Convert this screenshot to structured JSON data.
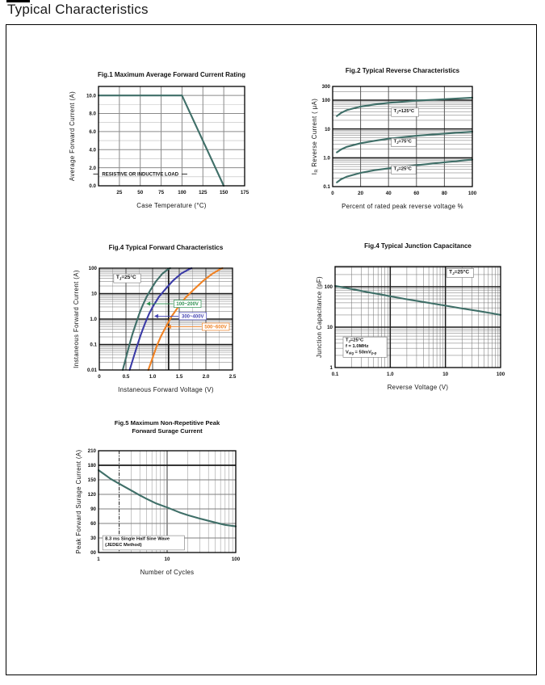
{
  "page": {
    "title": "Typical Characteristics"
  },
  "chart_data": [
    {
      "id": "fig1",
      "type": "line",
      "title": "Fig.1  Maximum Average Forward Current Rating",
      "xlabel": "Case Temperature (°C)",
      "ylabel": "Average Forward Current  (A)",
      "xscale": "linear",
      "xlim": [
        0,
        175
      ],
      "xtick_vals": [
        25,
        50,
        75,
        100,
        125,
        150,
        175
      ],
      "xtick_labels": [
        "25",
        "50",
        "75",
        "100",
        "125",
        "150",
        "175"
      ],
      "yscale": "linear",
      "ylim": [
        0,
        11
      ],
      "ytick_vals": [
        0,
        2,
        4,
        6,
        8,
        10
      ],
      "ytick_labels": [
        "0.0",
        "2.0",
        "4.0",
        "6.0",
        "8.0",
        "10.0"
      ],
      "yminor_step": 1,
      "grid": "on",
      "series": [
        {
          "name": "max-average-forward-current",
          "color": "#3F6F68",
          "points": [
            [
              0,
              10
            ],
            [
              100,
              10
            ],
            [
              150,
              0
            ]
          ]
        }
      ],
      "annotations": [
        {
          "kind": "dash-text",
          "text": "RESISTIVE OR INDUCTIVE LOAD",
          "x": 50,
          "y": 1.3
        }
      ]
    },
    {
      "id": "fig2",
      "type": "line",
      "title": "Fig.2  Typical Reverse Characteristics",
      "xlabel": "Percent of  rated peak reverse voltage  %",
      "ylabel": "I_{R}  Reverse Current ( μA)",
      "xscale": "linear",
      "xlim": [
        0,
        100
      ],
      "xtick_vals": [
        0,
        20,
        40,
        60,
        80,
        100
      ],
      "xtick_labels": [
        "0",
        "20",
        "40",
        "60",
        "80",
        "100"
      ],
      "yscale": "log",
      "ylim": [
        0.1,
        300
      ],
      "ytick_vals": [
        0.1,
        1,
        10,
        100,
        300
      ],
      "ytick_labels": [
        "0.1",
        "1.0",
        "10",
        "100",
        "300"
      ],
      "grid": "on",
      "series": [
        {
          "name": "reverse-current-tj-125C",
          "color": "#3F6F68",
          "points": [
            [
              3,
              28
            ],
            [
              6,
              36
            ],
            [
              10,
              45
            ],
            [
              20,
              60
            ],
            [
              30,
              71
            ],
            [
              40,
              81
            ],
            [
              60,
              96
            ],
            [
              80,
              108
            ],
            [
              100,
              122
            ]
          ]
        },
        {
          "name": "reverse-current-tj-75C",
          "color": "#3F6F68",
          "points": [
            [
              3,
              1.55
            ],
            [
              6,
              1.95
            ],
            [
              10,
              2.4
            ],
            [
              20,
              3.2
            ],
            [
              30,
              3.9
            ],
            [
              40,
              4.6
            ],
            [
              60,
              5.8
            ],
            [
              80,
              6.9
            ],
            [
              100,
              8
            ]
          ]
        },
        {
          "name": "reverse-current-tj-25C",
          "color": "#3F6F68",
          "points": [
            [
              3,
              0.14
            ],
            [
              6,
              0.18
            ],
            [
              10,
              0.22
            ],
            [
              20,
              0.3
            ],
            [
              30,
              0.37
            ],
            [
              40,
              0.43
            ],
            [
              60,
              0.55
            ],
            [
              80,
              0.7
            ],
            [
              100,
              0.87
            ]
          ]
        }
      ],
      "annotations": [
        {
          "kind": "box-text",
          "lines": [
            "T_{J}=125°C"
          ],
          "x": 42,
          "y": 38,
          "border": true
        },
        {
          "kind": "box-text",
          "lines": [
            "T_{J}=75°C"
          ],
          "x": 42,
          "y": 3.4,
          "border": true
        },
        {
          "kind": "box-text",
          "lines": [
            "T_{J}=25°C"
          ],
          "x": 42,
          "y": 0.38,
          "border": true
        }
      ]
    },
    {
      "id": "fig4a",
      "type": "line",
      "title": "Fig.4  Typical Forward Characteristics",
      "xlabel": "Instaneous Forward Voltage (V)",
      "ylabel": "Instaneous Forward Current (A)",
      "xscale": "linear",
      "xlim": [
        0,
        2.5
      ],
      "xtick_vals": [
        0,
        0.5,
        1.0,
        1.5,
        2.0,
        2.5
      ],
      "xtick_labels": [
        "0",
        "0.5",
        "1.0",
        "1.5",
        "2.0",
        "2.5"
      ],
      "xminor_step": 0.25,
      "yscale": "log",
      "ylim": [
        0.01,
        100
      ],
      "ytick_vals": [
        0.01,
        0.1,
        1,
        10,
        100
      ],
      "ytick_labels": [
        "0.01",
        "0.1",
        "1.0",
        "10",
        "100"
      ],
      "grid": "on",
      "special_lines": [
        {
          "axis": "x",
          "v": 1.3,
          "style": "dark"
        }
      ],
      "series": [
        {
          "name": "vf-100-200V",
          "color": "#3F6F68",
          "points": [
            [
              0.44,
              0.01
            ],
            [
              0.5,
              0.03
            ],
            [
              0.56,
              0.09
            ],
            [
              0.62,
              0.25
            ],
            [
              0.68,
              0.6
            ],
            [
              0.74,
              1.4
            ],
            [
              0.8,
              3
            ],
            [
              0.88,
              7
            ],
            [
              0.96,
              14
            ],
            [
              1.06,
              30
            ],
            [
              1.18,
              60
            ],
            [
              1.3,
              95
            ],
            [
              1.33,
              100
            ]
          ]
        },
        {
          "name": "vf-300-400V",
          "color": "#3A3AA6",
          "points": [
            [
              0.57,
              0.01
            ],
            [
              0.64,
              0.03
            ],
            [
              0.71,
              0.09
            ],
            [
              0.78,
              0.25
            ],
            [
              0.86,
              0.7
            ],
            [
              0.94,
              1.7
            ],
            [
              1.02,
              3.5
            ],
            [
              1.12,
              7.5
            ],
            [
              1.24,
              15
            ],
            [
              1.38,
              32
            ],
            [
              1.54,
              62
            ],
            [
              1.7,
              95
            ],
            [
              1.73,
              100
            ]
          ]
        },
        {
          "name": "vf-500-600V",
          "color": "#F08224",
          "points": [
            [
              0.92,
              0.01
            ],
            [
              1.0,
              0.03
            ],
            [
              1.08,
              0.09
            ],
            [
              1.16,
              0.22
            ],
            [
              1.26,
              0.55
            ],
            [
              1.36,
              1.3
            ],
            [
              1.48,
              3
            ],
            [
              1.62,
              7
            ],
            [
              1.78,
              15
            ],
            [
              1.95,
              32
            ],
            [
              2.12,
              60
            ],
            [
              2.28,
              95
            ],
            [
              2.31,
              100
            ]
          ]
        }
      ],
      "annotations": [
        {
          "kind": "box-text",
          "lines": [
            "T_{J}=25°C"
          ],
          "x": 0.27,
          "y": 40,
          "border": true,
          "fs": 6.5
        },
        {
          "kind": "arrow-label",
          "text": "100~200V",
          "x": 1.4,
          "y": 4,
          "tx": 0.88,
          "color": "#2E9150"
        },
        {
          "kind": "arrow-label",
          "text": "300~400V",
          "x": 1.5,
          "y": 1.3,
          "tx": 1.03,
          "color": "#4646B4"
        },
        {
          "kind": "arrow-label",
          "text": "500~600V",
          "x": 1.93,
          "y": 0.5,
          "tx": 1.27,
          "color": "#F08224"
        }
      ]
    },
    {
      "id": "fig4b",
      "type": "line",
      "title": "Fig.4  Typical Junction Capacitance",
      "xlabel": "Reverse  Voltage (V)",
      "ylabel": "Junction Capacitance (pF)",
      "xscale": "log",
      "xlim": [
        0.1,
        100
      ],
      "xtick_vals": [
        0.1,
        1,
        10,
        100
      ],
      "xtick_labels": [
        "0.1",
        "1.0",
        "10",
        "100"
      ],
      "yscale": "log",
      "ylim": [
        1,
        316
      ],
      "ytick_vals": [
        1,
        10,
        100
      ],
      "ytick_labels": [
        "1",
        "10",
        "100"
      ],
      "grid": "on",
      "series": [
        {
          "name": "junction-capacitance",
          "color": "#3F6F68",
          "points": [
            [
              0.1,
              105
            ],
            [
              0.2,
              88
            ],
            [
              0.4,
              73
            ],
            [
              0.7,
              64
            ],
            [
              1,
              58
            ],
            [
              2,
              49
            ],
            [
              4,
              42
            ],
            [
              7,
              37
            ],
            [
              10,
              34
            ],
            [
              20,
              29
            ],
            [
              40,
              25
            ],
            [
              70,
              22
            ],
            [
              100,
              20
            ]
          ]
        }
      ],
      "annotations": [
        {
          "kind": "box-text",
          "lines": [
            "T_{J}=25°C"
          ],
          "x": 10.5,
          "y": 220,
          "border": true,
          "fs": 6.5
        },
        {
          "kind": "box-text",
          "lines": [
            "T_{J}=25°C",
            "f = 1.0MHz",
            "V_{sig} = 50mV_{p-p}"
          ],
          "x": 0.14,
          "y": 3.2,
          "border": true
        }
      ]
    },
    {
      "id": "fig5",
      "type": "line",
      "title": "Fig.5  Maximum Non-Repetitive Peak",
      "title2": "Forward Surage Current",
      "xlabel": "Number of Cycles",
      "ylabel": "Peak Forward Surage Current (A)",
      "xscale": "log",
      "xlim": [
        1,
        100
      ],
      "xtick_vals": [
        1,
        10,
        100
      ],
      "xtick_labels": [
        "1",
        "10",
        "100"
      ],
      "yscale": "linear",
      "ylim": [
        0,
        210
      ],
      "ytick_vals": [
        0,
        30,
        60,
        90,
        120,
        150,
        180,
        210
      ],
      "ytick_labels": [
        "00",
        "30",
        "60",
        "90",
        "120",
        "150",
        "180",
        "210"
      ],
      "grid": "on",
      "special_lines": [
        {
          "axis": "y",
          "v": 180,
          "style": "dark"
        },
        {
          "axis": "x",
          "v": 2,
          "style": "dashdot"
        }
      ],
      "series": [
        {
          "name": "peak-forward-surge-current",
          "color": "#3F6F68",
          "points": [
            [
              1,
              170
            ],
            [
              1.5,
              152
            ],
            [
              2,
              142
            ],
            [
              3,
              128
            ],
            [
              4,
              118
            ],
            [
              5,
              111
            ],
            [
              7,
              101
            ],
            [
              10,
              93
            ],
            [
              15,
              83
            ],
            [
              20,
              77
            ],
            [
              30,
              70
            ],
            [
              50,
              62
            ],
            [
              70,
              57
            ],
            [
              100,
              54
            ]
          ]
        }
      ],
      "annotations": [
        {
          "kind": "box-text",
          "lines": [
            "8.3 ms Single Half Sine Wave",
            "(JEDEC Method)"
          ],
          "x": 1.15,
          "y": 20,
          "border": true
        }
      ]
    }
  ]
}
